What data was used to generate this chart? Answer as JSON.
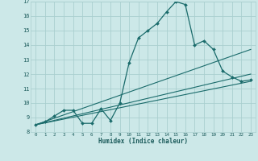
{
  "xlabel": "Humidex (Indice chaleur)",
  "bg_color": "#cce8e8",
  "grid_color": "#aacfcf",
  "line_color": "#1a6b6b",
  "xlim": [
    -0.5,
    23.5
  ],
  "ylim": [
    8,
    17
  ],
  "xticks": [
    0,
    1,
    2,
    3,
    4,
    5,
    6,
    7,
    8,
    9,
    10,
    11,
    12,
    13,
    14,
    15,
    16,
    17,
    18,
    19,
    20,
    21,
    22,
    23
  ],
  "yticks": [
    8,
    9,
    10,
    11,
    12,
    13,
    14,
    15,
    16,
    17
  ],
  "line1_x": [
    0,
    1,
    2,
    3,
    4,
    5,
    6,
    7,
    8,
    9,
    10,
    11,
    12,
    13,
    14,
    15,
    16,
    17,
    18,
    19,
    20,
    21,
    22,
    23
  ],
  "line1_y": [
    8.5,
    8.7,
    9.1,
    9.5,
    9.5,
    8.6,
    8.6,
    9.6,
    8.8,
    10.0,
    12.8,
    14.5,
    15.0,
    15.5,
    16.3,
    17.0,
    16.8,
    14.0,
    14.3,
    13.7,
    12.2,
    11.8,
    11.5,
    11.6
  ],
  "line2_x": [
    0,
    23
  ],
  "line2_y": [
    8.5,
    11.5
  ],
  "line3_x": [
    0,
    23
  ],
  "line3_y": [
    8.5,
    12.0
  ],
  "line4_x": [
    0,
    23
  ],
  "line4_y": [
    8.5,
    13.7
  ]
}
